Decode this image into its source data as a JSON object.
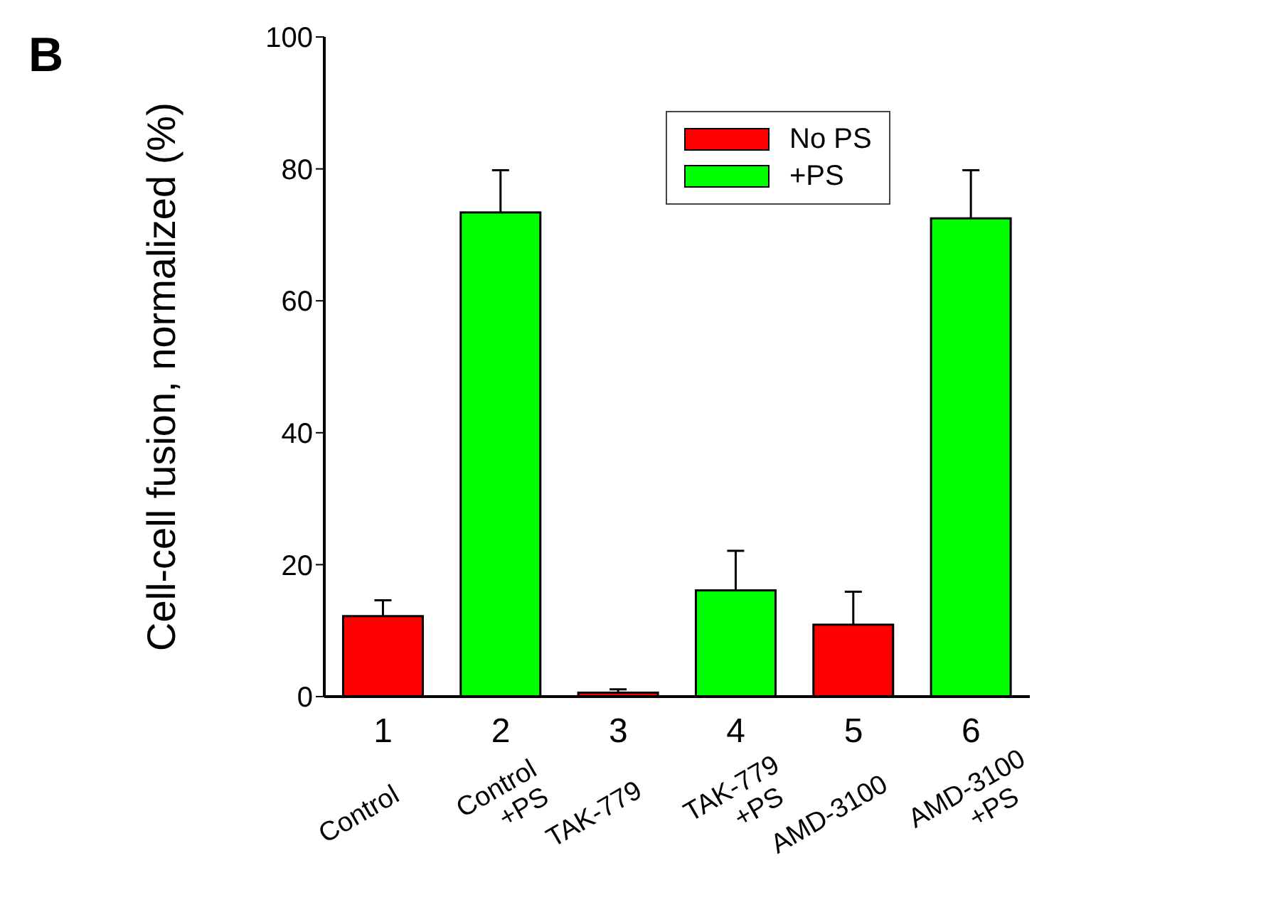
{
  "chart_data": {
    "type": "bar",
    "ylabel": "Cell-cell fusion, normalized (%)",
    "categories": [
      "1",
      "2",
      "3",
      "4",
      "5",
      "6"
    ],
    "series": [
      {
        "name": "No PS",
        "color": "#ff0000",
        "values": [
          12.2,
          null,
          0.6,
          null,
          10.9,
          null
        ],
        "errors": [
          2.4,
          null,
          0.5,
          null,
          5,
          null
        ]
      },
      {
        "name": "+PS",
        "color": "#00ff00",
        "values": [
          null,
          73.4,
          null,
          16.1,
          null,
          72.5
        ],
        "errors": [
          null,
          6.4,
          null,
          6,
          null,
          7.3
        ]
      }
    ],
    "ylim": [
      0,
      100
    ],
    "yticks": [
      0,
      20,
      40,
      60,
      80,
      100
    ],
    "grid": false,
    "legend": "top",
    "annotations": [
      "B",
      "Control",
      "Control\n+PS",
      "TAK-779",
      "TAK-779\n+PS",
      "AMD-3100",
      "AMD-3100\n+PS"
    ]
  }
}
